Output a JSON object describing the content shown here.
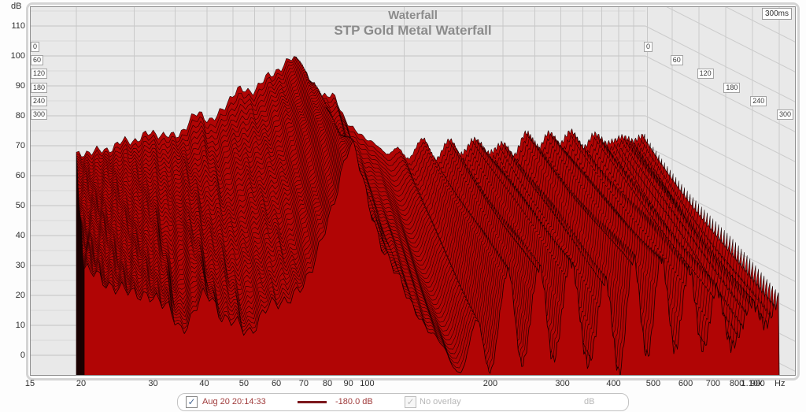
{
  "chart_data": {
    "type": "waterfall",
    "title": "Waterfall",
    "subtitle": "STP Gold Metal Waterfall",
    "y_axis": {
      "label": "dB",
      "min": 0,
      "max": 110,
      "major_step": 10,
      "minor_step": 5,
      "ticks": [
        110,
        100,
        90,
        80,
        70,
        60,
        50,
        40,
        30,
        20,
        10,
        0
      ]
    },
    "x_axis": {
      "unit": "Hz",
      "scale": "log",
      "min": 15,
      "max": 1100,
      "ticks": [
        {
          "f": 15,
          "label": "15"
        },
        {
          "f": 20,
          "label": "20"
        },
        {
          "f": 30,
          "label": "30"
        },
        {
          "f": 40,
          "label": "40"
        },
        {
          "f": 50,
          "label": "50"
        },
        {
          "f": 60,
          "label": "60"
        },
        {
          "f": 70,
          "label": "70"
        },
        {
          "f": 80,
          "label": "80"
        },
        {
          "f": 90,
          "label": "90"
        },
        {
          "f": 100,
          "label": "100"
        },
        {
          "f": 200,
          "label": "200"
        },
        {
          "f": 300,
          "label": "300"
        },
        {
          "f": 400,
          "label": "400"
        },
        {
          "f": 500,
          "label": "500"
        },
        {
          "f": 600,
          "label": "600"
        },
        {
          "f": 700,
          "label": "700"
        },
        {
          "f": 800,
          "label": "800"
        },
        {
          "f": 900,
          "label": "900"
        },
        {
          "f": 1100,
          "label": "1.10k"
        }
      ]
    },
    "time_axis": {
      "unit": "ms",
      "window_label": "300ms",
      "ticks": [
        0,
        60,
        120,
        180,
        240,
        300
      ]
    },
    "series": [
      {
        "name": "Aug 20 20:14:33",
        "floor_db": "-180.0 dB"
      }
    ],
    "waterfall": {
      "slice_count": 48,
      "p_definition": "p = normalized log-frequency position along a slice, 0 = 20 Hz, 1 = 1.1 kHz",
      "spectrum_t0_db": [
        [
          0,
          66.5
        ],
        [
          0.04,
          68.5
        ],
        [
          0.07,
          70
        ],
        [
          0.1,
          72
        ],
        [
          0.13,
          74.2
        ],
        [
          0.16,
          73
        ],
        [
          0.19,
          76
        ],
        [
          0.215,
          80.5
        ],
        [
          0.24,
          79
        ],
        [
          0.28,
          87.5
        ],
        [
          0.315,
          89.5
        ],
        [
          0.345,
          94
        ],
        [
          0.365,
          97
        ],
        [
          0.383,
          99.8
        ],
        [
          0.4,
          94.5
        ],
        [
          0.425,
          88
        ],
        [
          0.45,
          86.5
        ],
        [
          0.47,
          80
        ],
        [
          0.49,
          76.5
        ],
        [
          0.515,
          72
        ],
        [
          0.545,
          67
        ],
        [
          0.565,
          70
        ],
        [
          0.585,
          65
        ],
        [
          0.61,
          71
        ],
        [
          0.63,
          66
        ],
        [
          0.655,
          72.5
        ],
        [
          0.675,
          67
        ],
        [
          0.7,
          73
        ],
        [
          0.725,
          68
        ],
        [
          0.75,
          70.5
        ],
        [
          0.77,
          66
        ],
        [
          0.79,
          73.5
        ],
        [
          0.81,
          69
        ],
        [
          0.83,
          74.5
        ],
        [
          0.85,
          70
        ],
        [
          0.87,
          75.5
        ],
        [
          0.89,
          71
        ],
        [
          0.91,
          74
        ],
        [
          0.93,
          70
        ],
        [
          0.96,
          73.5
        ],
        [
          0.98,
          71
        ],
        [
          1,
          72.5
        ]
      ],
      "decay_300ms_db": [
        [
          0,
          15
        ],
        [
          0.05,
          24
        ],
        [
          0.09,
          29
        ],
        [
          0.12,
          34
        ],
        [
          0.14,
          44
        ],
        [
          0.17,
          30
        ],
        [
          0.2,
          43
        ],
        [
          0.23,
          48
        ],
        [
          0.26,
          46
        ],
        [
          0.29,
          47
        ],
        [
          0.32,
          42
        ],
        [
          0.35,
          28
        ],
        [
          0.383,
          7.5
        ],
        [
          0.41,
          18
        ],
        [
          0.43,
          30
        ],
        [
          0.455,
          38
        ],
        [
          0.48,
          42
        ],
        [
          0.51,
          46
        ],
        [
          0.54,
          50
        ],
        [
          0.565,
          34
        ],
        [
          0.585,
          48
        ],
        [
          0.61,
          20
        ],
        [
          0.63,
          46
        ],
        [
          0.655,
          21
        ],
        [
          0.675,
          47
        ],
        [
          0.7,
          19
        ],
        [
          0.725,
          48
        ],
        [
          0.75,
          22
        ],
        [
          0.77,
          49
        ],
        [
          0.79,
          18
        ],
        [
          0.81,
          46
        ],
        [
          0.83,
          20
        ],
        [
          0.85,
          47
        ],
        [
          0.87,
          24
        ],
        [
          0.89,
          46
        ],
        [
          0.91,
          30
        ],
        [
          0.93,
          44
        ],
        [
          0.96,
          32
        ],
        [
          0.98,
          38
        ],
        [
          1,
          30
        ]
      ]
    },
    "colors": {
      "fill": "#b10505",
      "stroke": "#170101",
      "plot_bg": "#e9e9e9",
      "grid_major": "#c2c2c2",
      "grid_minor": "#d9d9d9",
      "grid_vert": "#c9c9c9",
      "grid_wall": "#cbcbcb",
      "border": "#8f8f8f",
      "bevel": "#d4d4d4",
      "title": "#8b8b8b",
      "axis_text": "#2f2f2f"
    }
  },
  "legend": {
    "measurement_checkbox_checked": true,
    "check_glyph": "✓",
    "measurement_label": "Aug 20 20:14:33",
    "floor_label": "-180.0 dB",
    "overlay_checkbox_checked": true,
    "overlay_label": "No overlay",
    "unit_label": "dB"
  }
}
